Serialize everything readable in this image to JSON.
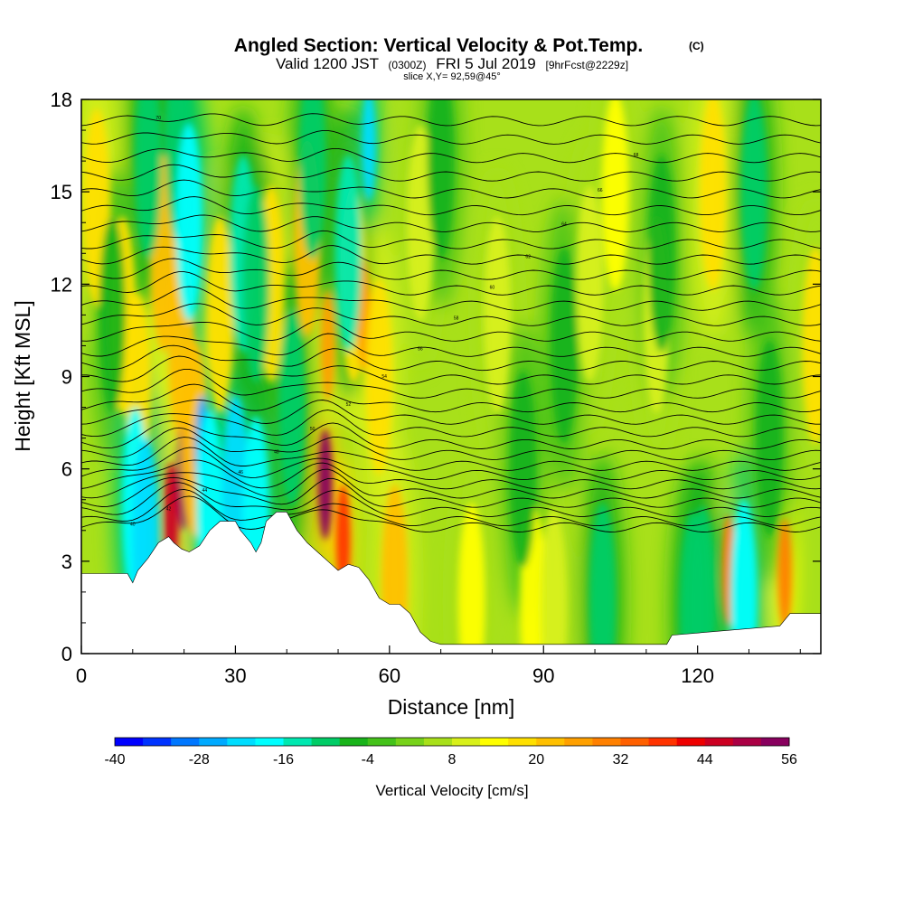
{
  "chart_data": {
    "type": "heatmap",
    "title": "Angled Section: Vertical Velocity & Pot.Temp.",
    "title_mark": "(C)",
    "subtitle_prefix": "Valid 1200 JST",
    "subtitle_utc": "(0300Z)",
    "subtitle_date": "FRI 5 Jul 2019",
    "subtitle_fcst": "[9hrFcst@2229z]",
    "slice_info": "slice X,Y= 92,59@45°",
    "xlabel": "Distance [nm]",
    "ylabel": "Height [Kft MSL]",
    "xlim": [
      0,
      144
    ],
    "ylim": [
      0,
      18
    ],
    "x_ticks": [
      0,
      30,
      60,
      90,
      120
    ],
    "x_tick_labels": [
      "0",
      "30",
      "60",
      "90",
      "120"
    ],
    "y_ticks": [
      0,
      3,
      6,
      9,
      12,
      15,
      18
    ],
    "y_tick_labels": [
      "0",
      "3",
      "6",
      "9",
      "12",
      "15",
      "18"
    ],
    "colorbar": {
      "label": "Vertical Velocity [cm/s]",
      "min": -40,
      "max": 56,
      "step": 4,
      "tick_values": [
        -40,
        -28,
        -16,
        -4,
        8,
        20,
        32,
        44,
        56
      ],
      "tick_labels": [
        "-40",
        "-28",
        "-16",
        "-4",
        "8",
        "20",
        "32",
        "44",
        "56"
      ],
      "colors": [
        "#0000ff",
        "#0033ff",
        "#0077ff",
        "#00aaff",
        "#00ddff",
        "#00ffff",
        "#00e8b0",
        "#00cc66",
        "#19b31a",
        "#44c21a",
        "#77d21a",
        "#a8e01a",
        "#d8f01a",
        "#ffff00",
        "#ffe000",
        "#ffc000",
        "#ffa000",
        "#ff8000",
        "#ff6000",
        "#ff3300",
        "#ee0000",
        "#cc0022",
        "#aa0044",
        "#88005e",
        "#66007a"
      ]
    },
    "updrafts": [
      {
        "x": 3,
        "y": 14.5,
        "w": 18
      },
      {
        "x": 8,
        "y": 11,
        "w": 16
      },
      {
        "x": 11,
        "y": 8.5,
        "w": 16
      },
      {
        "x": 16,
        "y": 13,
        "w": 22
      },
      {
        "x": 17.5,
        "y": 4.4,
        "w": 45
      },
      {
        "x": 19.5,
        "y": 10,
        "w": 20
      },
      {
        "x": 20,
        "y": 5.8,
        "w": 56
      },
      {
        "x": 22,
        "y": 7,
        "w": 22
      },
      {
        "x": 27,
        "y": 11,
        "w": 16
      },
      {
        "x": 37,
        "y": 12,
        "w": 18
      },
      {
        "x": 44,
        "y": 13.5,
        "w": 20
      },
      {
        "x": 47.5,
        "y": 5.5,
        "w": 52
      },
      {
        "x": 48,
        "y": 10,
        "w": 24
      },
      {
        "x": 51,
        "y": 3.7,
        "w": 38
      },
      {
        "x": 53,
        "y": 12,
        "w": 18
      },
      {
        "x": 55,
        "y": 11,
        "w": 26
      },
      {
        "x": 58,
        "y": 9,
        "w": 18
      },
      {
        "x": 61,
        "y": 2.3,
        "w": 20
      },
      {
        "x": 66,
        "y": 14,
        "w": 10
      },
      {
        "x": 76,
        "y": 1.7,
        "w": 12
      },
      {
        "x": 81,
        "y": 11,
        "w": 10
      },
      {
        "x": 88,
        "y": 1.6,
        "w": 12
      },
      {
        "x": 92,
        "y": 1.5,
        "w": 10
      },
      {
        "x": 99,
        "y": 12,
        "w": 10
      },
      {
        "x": 104,
        "y": 15,
        "w": 12
      },
      {
        "x": 112,
        "y": 11,
        "w": 10
      },
      {
        "x": 126,
        "y": 2.7,
        "w": 30
      },
      {
        "x": 123,
        "y": 15,
        "w": 18
      },
      {
        "x": 137,
        "y": 2.6,
        "w": 28
      },
      {
        "x": 143,
        "y": 10,
        "w": 16
      }
    ],
    "downdrafts": [
      {
        "x": 6,
        "y": 11,
        "w": -8
      },
      {
        "x": 10.5,
        "y": 4.8,
        "w": -20
      },
      {
        "x": 12.5,
        "y": 3.8,
        "w": -22
      },
      {
        "x": 13,
        "y": 16,
        "w": -10
      },
      {
        "x": 19,
        "y": 16.5,
        "w": -12
      },
      {
        "x": 21,
        "y": 14,
        "w": -20
      },
      {
        "x": 23.5,
        "y": 6.6,
        "w": -28
      },
      {
        "x": 25,
        "y": 4.7,
        "w": -20
      },
      {
        "x": 30,
        "y": 5.2,
        "w": -22
      },
      {
        "x": 31.5,
        "y": 13,
        "w": -16
      },
      {
        "x": 34,
        "y": 4.5,
        "w": -20
      },
      {
        "x": 34,
        "y": 12,
        "w": -10
      },
      {
        "x": 41,
        "y": 8,
        "w": -10
      },
      {
        "x": 45,
        "y": 16,
        "w": -10
      },
      {
        "x": 52,
        "y": 13,
        "w": -14
      },
      {
        "x": 56,
        "y": 16.5,
        "w": -24
      },
      {
        "x": 70,
        "y": 16,
        "w": -8
      },
      {
        "x": 86,
        "y": 6,
        "w": -8
      },
      {
        "x": 94,
        "y": 10,
        "w": -8
      },
      {
        "x": 101.5,
        "y": 1.7,
        "w": -10
      },
      {
        "x": 113,
        "y": 13,
        "w": -8
      },
      {
        "x": 119,
        "y": 1.4,
        "w": -12
      },
      {
        "x": 121,
        "y": 1.6,
        "w": -10
      },
      {
        "x": 129,
        "y": 1.8,
        "w": -18
      },
      {
        "x": 131,
        "y": 15,
        "w": -10
      },
      {
        "x": 134,
        "y": 7,
        "w": -8
      }
    ],
    "terrain": [
      [
        0,
        2.6
      ],
      [
        9,
        2.6
      ],
      [
        10,
        2.3
      ],
      [
        11,
        2.7
      ],
      [
        13,
        3.1
      ],
      [
        15,
        3.6
      ],
      [
        17,
        3.8
      ],
      [
        18,
        3.6
      ],
      [
        19.5,
        3.4
      ],
      [
        21,
        3.3
      ],
      [
        23,
        3.5
      ],
      [
        25,
        4.0
      ],
      [
        27,
        4.3
      ],
      [
        30,
        4.3
      ],
      [
        31,
        4.0
      ],
      [
        33,
        3.6
      ],
      [
        34,
        3.3
      ],
      [
        35,
        3.6
      ],
      [
        36,
        4.3
      ],
      [
        38,
        4.6
      ],
      [
        40,
        4.6
      ],
      [
        42,
        4.0
      ],
      [
        44,
        3.6
      ],
      [
        46,
        3.3
      ],
      [
        48,
        3.0
      ],
      [
        50,
        2.7
      ],
      [
        52,
        2.9
      ],
      [
        54,
        2.8
      ],
      [
        56,
        2.4
      ],
      [
        57,
        2.1
      ],
      [
        58,
        1.8
      ],
      [
        60,
        1.6
      ],
      [
        62,
        1.6
      ],
      [
        64,
        1.3
      ],
      [
        66,
        0.7
      ],
      [
        68,
        0.4
      ],
      [
        70,
        0.3
      ],
      [
        114,
        0.3
      ],
      [
        115,
        0.6
      ],
      [
        136,
        0.9
      ],
      [
        138,
        1.3
      ],
      [
        144,
        1.3
      ]
    ],
    "isentropes": {
      "count": 31,
      "bottom_heights": [
        4.1,
        4.3,
        4.6,
        4.9,
        5.2,
        5.5,
        5.8,
        6.1,
        6.45,
        6.8,
        7.2,
        7.6,
        8.0,
        8.45,
        8.9,
        9.35,
        9.8,
        10.3,
        10.8,
        11.3,
        11.8,
        12.3,
        12.8,
        13.3,
        13.85,
        14.4,
        14.95,
        15.5,
        16.1,
        16.7,
        17.3
      ],
      "labels": [
        "40",
        "42",
        "44",
        "46",
        "48",
        "50",
        "52",
        "54",
        "56",
        "58",
        "60",
        "62",
        "64",
        "66",
        "68",
        "70"
      ]
    }
  }
}
